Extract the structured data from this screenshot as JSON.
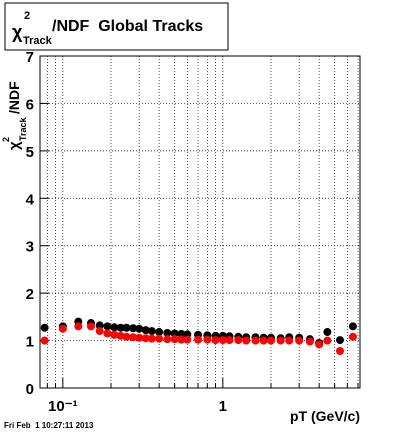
{
  "chart_data": {
    "type": "scatter",
    "title": {
      "symbol": "χ",
      "sup": "2",
      "sub": "Track",
      "rest": "/NDF  Global Tracks"
    },
    "y_label": {
      "symbol": "χ",
      "sup": "2",
      "sub": "Track",
      "rest": "/NDF"
    },
    "x_label": "pT (GeV/c)",
    "footer": "Fri Feb  1 10:27:11 2013",
    "log_x": true,
    "grid": true,
    "xlim": [
      0.072,
      7.2
    ],
    "ylim": [
      0,
      7
    ],
    "xticks": [
      {
        "value": 0.1,
        "label": "10⁻¹"
      },
      1
    ],
    "xminor_ticks": [
      0.08,
      0.09,
      0.2,
      0.3,
      0.4,
      0.5,
      0.6,
      0.7,
      0.8,
      0.9,
      2,
      3,
      4,
      5,
      6,
      7
    ],
    "yticks": [
      0,
      1,
      2,
      3,
      4,
      5,
      6,
      7
    ],
    "x": [
      0.077,
      0.1,
      0.125,
      0.15,
      0.17,
      0.19,
      0.21,
      0.23,
      0.25,
      0.275,
      0.3,
      0.33,
      0.36,
      0.4,
      0.45,
      0.5,
      0.55,
      0.6,
      0.7,
      0.8,
      0.9,
      1.0,
      1.1,
      1.25,
      1.4,
      1.6,
      1.8,
      2.0,
      2.3,
      2.6,
      3.0,
      3.5,
      4.0,
      4.5,
      5.4,
      6.5
    ],
    "series": [
      {
        "color": "#000000",
        "values": [
          1.27,
          1.3,
          1.4,
          1.37,
          1.32,
          1.3,
          1.28,
          1.27,
          1.27,
          1.26,
          1.25,
          1.22,
          1.2,
          1.18,
          1.16,
          1.15,
          1.14,
          1.13,
          1.12,
          1.11,
          1.1,
          1.1,
          1.09,
          1.08,
          1.07,
          1.07,
          1.06,
          1.06,
          1.05,
          1.07,
          1.06,
          1.03,
          0.95,
          1.18,
          1.01,
          1.3
        ]
      },
      {
        "color": "#ff0000",
        "values": [
          1.0,
          1.25,
          1.3,
          1.3,
          1.2,
          1.15,
          1.12,
          1.1,
          1.08,
          1.07,
          1.06,
          1.05,
          1.04,
          1.04,
          1.03,
          1.03,
          1.02,
          1.02,
          1.02,
          1.02,
          1.01,
          1.01,
          1.01,
          1.01,
          1.0,
          1.0,
          1.0,
          1.0,
          1.0,
          1.0,
          1.0,
          0.98,
          0.92,
          1.0,
          0.78,
          1.08
        ]
      }
    ]
  }
}
